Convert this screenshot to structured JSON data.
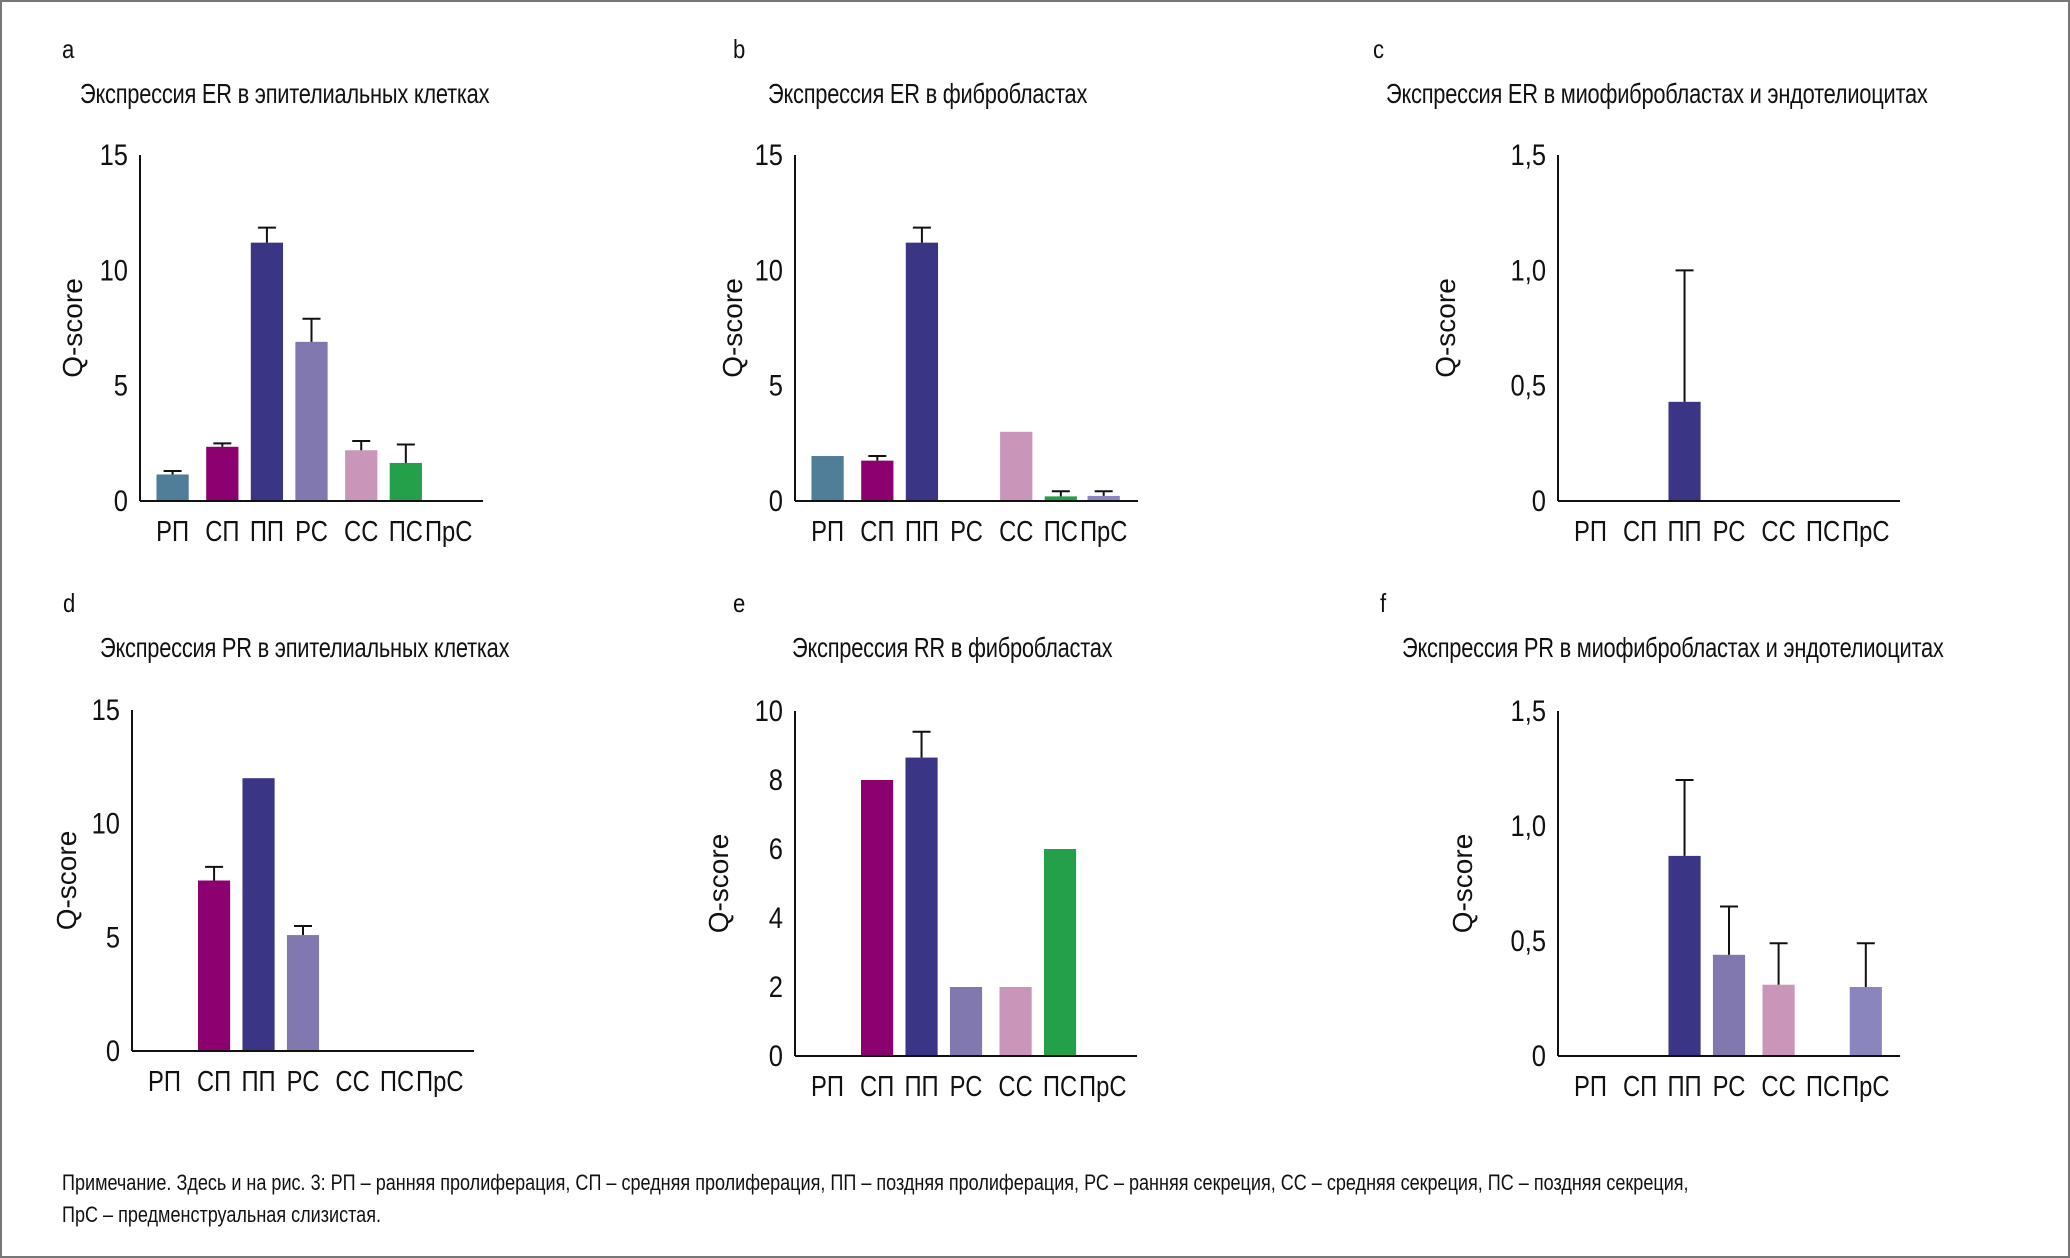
{
  "note": {
    "line1": "Примечание. Здесь и на рис. 3: РП – ранняя пролиферация, СП – средняя пролиферация, ПП – поздняя пролиферация, РС – ранняя секреция, СС – средняя секреция, ПС – поздняя секреция,",
    "line2": "ПрС – предменструальная слизистая."
  },
  "colors": {
    "РП": "#507e98",
    "СП": "#8c0070",
    "ПП": "#3a3585",
    "РС": "#8078ae",
    "СС": "#c995b8",
    "ПС": "#24a04a",
    "ПрС": "#8a86bd",
    "axis": "#111111"
  },
  "chart_data": [
    {
      "id": "a",
      "panel_letter": "a",
      "type": "bar",
      "title": "Экспрессия ER в эпителиальных клетках",
      "xlabel": "",
      "ylabel": "Q-score",
      "categories": [
        "РП",
        "СП",
        "ПП",
        "РС",
        "СС",
        "ПС",
        "ПрС"
      ],
      "values": [
        1.15,
        2.35,
        11.2,
        6.9,
        2.2,
        1.65,
        0
      ],
      "error_upper": [
        1.3,
        2.5,
        11.85,
        7.9,
        2.6,
        2.45,
        null
      ],
      "ylim": [
        0,
        15
      ],
      "yticks": [
        0,
        5,
        10,
        15
      ],
      "ytick_labels": [
        "0",
        "5",
        "10",
        "15"
      ],
      "grid": false,
      "legend": "none"
    },
    {
      "id": "b",
      "panel_letter": "b",
      "type": "bar",
      "title": "Экспрессия ER в фибробластах",
      "xlabel": "",
      "ylabel": "Q-score",
      "categories": [
        "РП",
        "СП",
        "ПП",
        "РС",
        "СС",
        "ПС",
        "ПрС"
      ],
      "values": [
        1.95,
        1.75,
        11.2,
        0,
        3.0,
        0.2,
        0.22
      ],
      "error_upper": [
        null,
        1.95,
        11.85,
        null,
        null,
        0.42,
        0.42
      ],
      "ylim": [
        0,
        15
      ],
      "yticks": [
        0,
        5,
        10,
        15
      ],
      "ytick_labels": [
        "0",
        "5",
        "10",
        "15"
      ],
      "grid": false,
      "legend": "none"
    },
    {
      "id": "c",
      "panel_letter": "c",
      "type": "bar",
      "title": "Экспрессия ER в миофибробластах и эндотелиоцитах",
      "xlabel": "",
      "ylabel": "Q-score",
      "categories": [
        "РП",
        "СП",
        "ПП",
        "РС",
        "СС",
        "ПС",
        "ПрС"
      ],
      "values": [
        0,
        0,
        0.43,
        0,
        0,
        0,
        0
      ],
      "error_upper": [
        null,
        null,
        1.0,
        null,
        null,
        null,
        null
      ],
      "ylim": [
        0,
        1.5
      ],
      "yticks": [
        0,
        0.5,
        1.0,
        1.5
      ],
      "ytick_labels": [
        "0",
        "0,5",
        "1,0",
        "1,5"
      ],
      "grid": false,
      "legend": "none"
    },
    {
      "id": "d",
      "panel_letter": "d",
      "type": "bar",
      "title": "Экспрессия PR в эпителиальных клетках",
      "xlabel": "",
      "ylabel": "Q-score",
      "categories": [
        "РП",
        "СП",
        "ПП",
        "РС",
        "СС",
        "ПС",
        "ПрС"
      ],
      "values": [
        0,
        7.5,
        12.0,
        5.1,
        0,
        0,
        0
      ],
      "error_upper": [
        null,
        8.1,
        null,
        5.5,
        null,
        null,
        null
      ],
      "ylim": [
        0,
        15
      ],
      "yticks": [
        0,
        5,
        10,
        15
      ],
      "ytick_labels": [
        "0",
        "5",
        "10",
        "15"
      ],
      "grid": false,
      "legend": "none"
    },
    {
      "id": "e",
      "panel_letter": "e",
      "type": "bar",
      "title": "Экспрессия RR в фибробластах",
      "xlabel": "",
      "ylabel": "Q-score",
      "categories": [
        "РП",
        "СП",
        "ПП",
        "РС",
        "СС",
        "ПС",
        "ПрС"
      ],
      "values": [
        0,
        8.0,
        8.65,
        2.0,
        2.0,
        6.0,
        0
      ],
      "error_upper": [
        null,
        null,
        9.4,
        null,
        null,
        null,
        null
      ],
      "ylim": [
        0,
        10
      ],
      "yticks": [
        0,
        2,
        4,
        6,
        8,
        10
      ],
      "ytick_labels": [
        "0",
        "2",
        "4",
        "6",
        "8",
        "10"
      ],
      "grid": false,
      "legend": "none"
    },
    {
      "id": "f",
      "panel_letter": "f",
      "type": "bar",
      "title": "Экспрессия PR в миофибробластах и эндотелиоцитах",
      "xlabel": "",
      "ylabel": "Q-score",
      "categories": [
        "РП",
        "СП",
        "ПП",
        "РС",
        "СС",
        "ПС",
        "ПрС"
      ],
      "values": [
        0,
        0,
        0.87,
        0.44,
        0.31,
        0,
        0.3
      ],
      "error_upper": [
        null,
        null,
        1.2,
        0.65,
        0.49,
        null,
        0.49
      ],
      "ylim": [
        0,
        1.5
      ],
      "yticks": [
        0,
        0.5,
        1.0,
        1.5
      ],
      "ytick_labels": [
        "0",
        "0,5",
        "1,0",
        "1,5"
      ],
      "grid": false,
      "legend": "none"
    }
  ]
}
